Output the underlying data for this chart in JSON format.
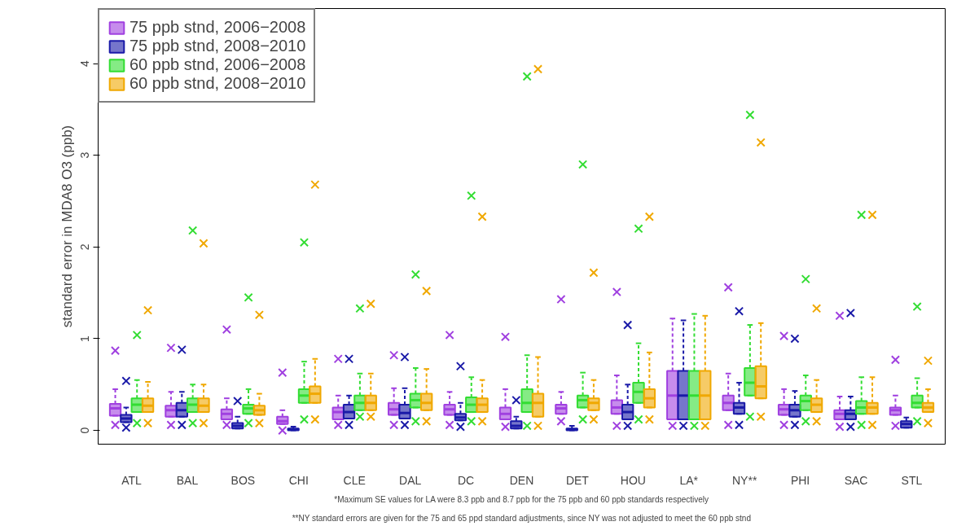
{
  "chart_data": {
    "type": "box",
    "categories": [
      "ATL",
      "BAL",
      "BOS",
      "CHI",
      "CLE",
      "DAL",
      "DC",
      "DEN",
      "DET",
      "HOU",
      "LA*",
      "NY**",
      "PHI",
      "SAC",
      "STL"
    ],
    "ylabel": "standard error in MDA8 O3 (ppb)",
    "ylim": [
      -0.15,
      4.6
    ],
    "yticks": [
      0,
      1,
      2,
      3,
      4
    ],
    "legend": "top left",
    "grid": false,
    "marker": "cross",
    "annotations": [
      "*Maximum SE values for LA were 8.3 ppb and 8.7 ppb for the 75 ppb and 60 ppb standards respectively",
      "**NY standard errors are given for the 75 and 65 ppd standard adjustments, since NY was not adjusted to meet the 60 ppb stnd"
    ],
    "series": [
      {
        "name": "75 ppb stnd, 2006−2008",
        "color": "#a040e0",
        "boxes": [
          {
            "low": 0.16,
            "q1": 0.16,
            "median": 0.24,
            "q3": 0.29,
            "high": 0.45,
            "outliers": [
              0.87,
              0.06
            ]
          },
          {
            "low": 0.15,
            "q1": 0.15,
            "median": 0.22,
            "q3": 0.27,
            "high": 0.42,
            "outliers": [
              0.9,
              0.06
            ]
          },
          {
            "low": 0.12,
            "q1": 0.12,
            "median": 0.18,
            "q3": 0.23,
            "high": 0.35,
            "outliers": [
              1.1,
              0.06
            ]
          },
          {
            "low": 0.07,
            "q1": 0.07,
            "median": 0.1,
            "q3": 0.15,
            "high": 0.22,
            "outliers": [
              0.63,
              0.0
            ]
          },
          {
            "low": 0.12,
            "q1": 0.12,
            "median": 0.2,
            "q3": 0.25,
            "high": 0.38,
            "outliers": [
              0.78,
              0.06
            ]
          },
          {
            "low": 0.17,
            "q1": 0.17,
            "median": 0.23,
            "q3": 0.3,
            "high": 0.46,
            "outliers": [
              0.82,
              0.06
            ]
          },
          {
            "low": 0.17,
            "q1": 0.17,
            "median": 0.23,
            "q3": 0.28,
            "high": 0.42,
            "outliers": [
              1.04,
              0.06
            ]
          },
          {
            "low": 0.12,
            "q1": 0.12,
            "median": 0.18,
            "q3": 0.25,
            "high": 0.45,
            "outliers": [
              1.02,
              0.04
            ]
          },
          {
            "low": 0.18,
            "q1": 0.18,
            "median": 0.24,
            "q3": 0.28,
            "high": 0.42,
            "outliers": [
              1.43,
              0.1
            ]
          },
          {
            "low": 0.18,
            "q1": 0.18,
            "median": 0.25,
            "q3": 0.33,
            "high": 0.6,
            "outliers": [
              1.51,
              0.05
            ]
          },
          {
            "low": 0.12,
            "q1": 0.12,
            "median": 0.38,
            "q3": 0.65,
            "high": 1.22,
            "outliers": [
              0.05
            ]
          },
          {
            "low": 0.22,
            "q1": 0.22,
            "median": 0.3,
            "q3": 0.38,
            "high": 0.62,
            "outliers": [
              1.56,
              0.06
            ]
          },
          {
            "low": 0.17,
            "q1": 0.17,
            "median": 0.23,
            "q3": 0.28,
            "high": 0.45,
            "outliers": [
              1.03,
              0.06
            ]
          },
          {
            "low": 0.12,
            "q1": 0.12,
            "median": 0.18,
            "q3": 0.22,
            "high": 0.37,
            "outliers": [
              1.25,
              0.04
            ]
          },
          {
            "low": 0.17,
            "q1": 0.17,
            "median": 0.22,
            "q3": 0.25,
            "high": 0.38,
            "outliers": [
              0.77,
              0.05
            ]
          }
        ]
      },
      {
        "name": "75 ppb stnd, 2008−2010",
        "color": "#1a1aa8",
        "boxes": [
          {
            "low": 0.09,
            "q1": 0.09,
            "median": 0.13,
            "q3": 0.17,
            "high": 0.25,
            "outliers": [
              0.54,
              0.03
            ]
          },
          {
            "low": 0.15,
            "q1": 0.15,
            "median": 0.22,
            "q3": 0.3,
            "high": 0.42,
            "outliers": [
              0.88,
              0.06
            ]
          },
          {
            "low": 0.02,
            "q1": 0.02,
            "median": 0.05,
            "q3": 0.08,
            "high": 0.15,
            "outliers": [
              0.32
            ]
          },
          {
            "low": 0.0,
            "q1": 0.0,
            "median": 0.01,
            "q3": 0.02,
            "high": 0.04
          },
          {
            "low": 0.13,
            "q1": 0.13,
            "median": 0.2,
            "q3": 0.28,
            "high": 0.38,
            "outliers": [
              0.78,
              0.06
            ]
          },
          {
            "low": 0.13,
            "q1": 0.13,
            "median": 0.19,
            "q3": 0.28,
            "high": 0.46,
            "outliers": [
              0.8,
              0.06
            ]
          },
          {
            "low": 0.11,
            "q1": 0.11,
            "median": 0.14,
            "q3": 0.18,
            "high": 0.3,
            "outliers": [
              0.7,
              0.04
            ]
          },
          {
            "low": 0.02,
            "q1": 0.02,
            "median": 0.05,
            "q3": 0.1,
            "high": 0.15,
            "outliers": [
              0.33
            ]
          },
          {
            "low": 0.0,
            "q1": 0.0,
            "median": 0.01,
            "q3": 0.02,
            "high": 0.05
          },
          {
            "low": 0.12,
            "q1": 0.12,
            "median": 0.2,
            "q3": 0.28,
            "high": 0.5,
            "outliers": [
              1.15,
              0.05
            ]
          },
          {
            "low": 0.12,
            "q1": 0.12,
            "median": 0.38,
            "q3": 0.65,
            "high": 1.2,
            "outliers": [
              0.05
            ]
          },
          {
            "low": 0.18,
            "q1": 0.18,
            "median": 0.25,
            "q3": 0.3,
            "high": 0.52,
            "outliers": [
              1.3,
              0.06
            ]
          },
          {
            "low": 0.15,
            "q1": 0.15,
            "median": 0.22,
            "q3": 0.28,
            "high": 0.43,
            "outliers": [
              1.0,
              0.06
            ]
          },
          {
            "low": 0.12,
            "q1": 0.12,
            "median": 0.18,
            "q3": 0.22,
            "high": 0.37,
            "outliers": [
              1.28,
              0.04
            ]
          },
          {
            "low": 0.03,
            "q1": 0.03,
            "median": 0.07,
            "q3": 0.1,
            "high": 0.14
          }
        ]
      },
      {
        "name": "60 ppb stnd, 2006−2008",
        "color": "#33dd33",
        "boxes": [
          {
            "low": 0.2,
            "q1": 0.2,
            "median": 0.28,
            "q3": 0.35,
            "high": 0.55,
            "outliers": [
              1.04,
              0.08
            ]
          },
          {
            "low": 0.2,
            "q1": 0.2,
            "median": 0.28,
            "q3": 0.35,
            "high": 0.5,
            "outliers": [
              2.18,
              0.08
            ]
          },
          {
            "low": 0.18,
            "q1": 0.18,
            "median": 0.24,
            "q3": 0.28,
            "high": 0.45,
            "outliers": [
              1.45,
              0.08
            ]
          },
          {
            "low": 0.3,
            "q1": 0.3,
            "median": 0.38,
            "q3": 0.45,
            "high": 0.75,
            "outliers": [
              2.05,
              0.12
            ]
          },
          {
            "low": 0.22,
            "q1": 0.22,
            "median": 0.3,
            "q3": 0.38,
            "high": 0.62,
            "outliers": [
              1.33,
              0.15
            ]
          },
          {
            "low": 0.25,
            "q1": 0.25,
            "median": 0.33,
            "q3": 0.4,
            "high": 0.68,
            "outliers": [
              1.7,
              0.1
            ]
          },
          {
            "low": 0.2,
            "q1": 0.2,
            "median": 0.28,
            "q3": 0.36,
            "high": 0.58,
            "outliers": [
              2.56,
              0.1
            ]
          },
          {
            "low": 0.2,
            "q1": 0.2,
            "median": 0.3,
            "q3": 0.45,
            "high": 0.82,
            "outliers": [
              3.86,
              0.05
            ]
          },
          {
            "low": 0.25,
            "q1": 0.25,
            "median": 0.33,
            "q3": 0.38,
            "high": 0.63,
            "outliers": [
              2.9,
              0.12
            ]
          },
          {
            "low": 0.3,
            "q1": 0.3,
            "median": 0.42,
            "q3": 0.52,
            "high": 0.95,
            "outliers": [
              2.2,
              0.12
            ]
          },
          {
            "low": 0.12,
            "q1": 0.12,
            "median": 0.38,
            "q3": 0.65,
            "high": 1.27,
            "outliers": [
              0.05
            ]
          },
          {
            "low": 0.38,
            "q1": 0.38,
            "median": 0.52,
            "q3": 0.68,
            "high": 1.15,
            "outliers": [
              3.44,
              0.15
            ]
          },
          {
            "low": 0.22,
            "q1": 0.22,
            "median": 0.32,
            "q3": 0.38,
            "high": 0.6,
            "outliers": [
              1.65,
              0.1
            ]
          },
          {
            "low": 0.18,
            "q1": 0.18,
            "median": 0.25,
            "q3": 0.32,
            "high": 0.58,
            "outliers": [
              2.35,
              0.06
            ]
          },
          {
            "low": 0.25,
            "q1": 0.25,
            "median": 0.3,
            "q3": 0.38,
            "high": 0.57,
            "outliers": [
              1.35,
              0.1
            ]
          }
        ]
      },
      {
        "name": "60 ppb stnd, 2008−2010",
        "color": "#f0a800",
        "boxes": [
          {
            "low": 0.2,
            "q1": 0.2,
            "median": 0.27,
            "q3": 0.35,
            "high": 0.53,
            "outliers": [
              1.31,
              0.08
            ]
          },
          {
            "low": 0.2,
            "q1": 0.2,
            "median": 0.27,
            "q3": 0.35,
            "high": 0.5,
            "outliers": [
              2.04,
              0.08
            ]
          },
          {
            "low": 0.17,
            "q1": 0.17,
            "median": 0.22,
            "q3": 0.27,
            "high": 0.4,
            "outliers": [
              1.26,
              0.08
            ]
          },
          {
            "low": 0.3,
            "q1": 0.3,
            "median": 0.4,
            "q3": 0.48,
            "high": 0.78,
            "outliers": [
              2.68,
              0.12
            ]
          },
          {
            "low": 0.22,
            "q1": 0.22,
            "median": 0.3,
            "q3": 0.38,
            "high": 0.62,
            "outliers": [
              1.38,
              0.15
            ]
          },
          {
            "low": 0.22,
            "q1": 0.22,
            "median": 0.3,
            "q3": 0.4,
            "high": 0.67,
            "outliers": [
              1.52,
              0.1
            ]
          },
          {
            "low": 0.2,
            "q1": 0.2,
            "median": 0.28,
            "q3": 0.35,
            "high": 0.55,
            "outliers": [
              2.33,
              0.1
            ]
          },
          {
            "low": 0.15,
            "q1": 0.15,
            "median": 0.3,
            "q3": 0.4,
            "high": 0.8,
            "outliers": [
              3.94,
              0.05
            ]
          },
          {
            "low": 0.22,
            "q1": 0.22,
            "median": 0.3,
            "q3": 0.35,
            "high": 0.55,
            "outliers": [
              1.72,
              0.12
            ]
          },
          {
            "low": 0.25,
            "q1": 0.25,
            "median": 0.35,
            "q3": 0.45,
            "high": 0.85,
            "outliers": [
              2.33,
              0.12
            ]
          },
          {
            "low": 0.12,
            "q1": 0.12,
            "median": 0.38,
            "q3": 0.65,
            "high": 1.25,
            "outliers": [
              0.05
            ]
          },
          {
            "low": 0.35,
            "q1": 0.35,
            "median": 0.48,
            "q3": 0.7,
            "high": 1.17,
            "outliers": [
              3.14,
              0.15
            ]
          },
          {
            "low": 0.2,
            "q1": 0.2,
            "median": 0.28,
            "q3": 0.35,
            "high": 0.55,
            "outliers": [
              1.33,
              0.1
            ]
          },
          {
            "low": 0.18,
            "q1": 0.18,
            "median": 0.25,
            "q3": 0.3,
            "high": 0.58,
            "outliers": [
              2.35,
              0.06
            ]
          },
          {
            "low": 0.2,
            "q1": 0.2,
            "median": 0.25,
            "q3": 0.3,
            "high": 0.45,
            "outliers": [
              0.76,
              0.08
            ]
          }
        ]
      }
    ]
  }
}
